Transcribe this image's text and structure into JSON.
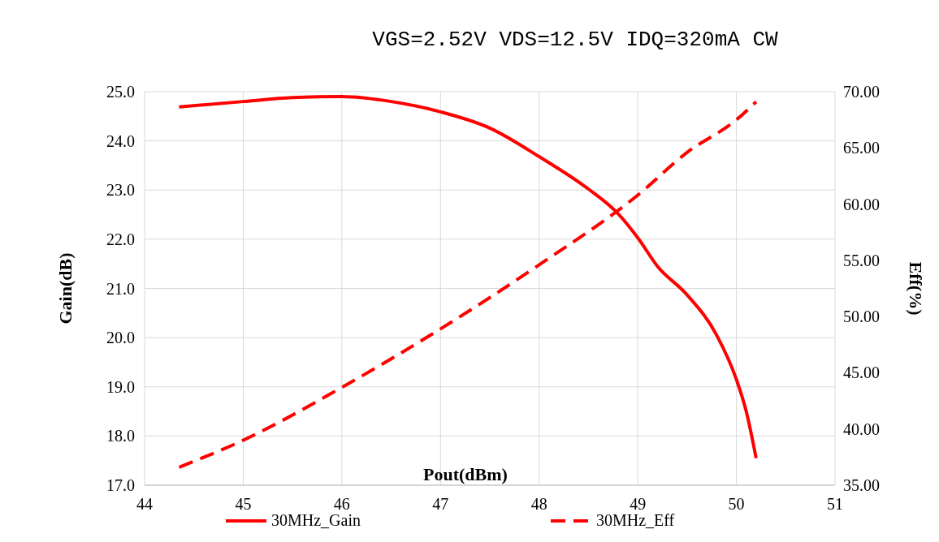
{
  "chart_data": {
    "type": "line",
    "title": "VGS=2.52V VDS=12.5V IDQ=320mA   CW",
    "xlabel": "Pout(dBm)",
    "ylabel": "Gain(dB)",
    "y2label": "Eff(%)",
    "xlim": [
      44,
      51
    ],
    "xticks": [
      44,
      45,
      46,
      47,
      48,
      49,
      50,
      51
    ],
    "ylim": [
      17,
      25
    ],
    "yticks": [
      {
        "value": 17,
        "label": "17.0"
      },
      {
        "value": 18,
        "label": "18.0"
      },
      {
        "value": 19,
        "label": "19.0"
      },
      {
        "value": 20,
        "label": "20.0"
      },
      {
        "value": 21,
        "label": "21.0"
      },
      {
        "value": 22,
        "label": "22.0"
      },
      {
        "value": 23,
        "label": "23.0"
      },
      {
        "value": 24,
        "label": "24.0"
      },
      {
        "value": 25,
        "label": "25.0"
      }
    ],
    "y2lim": [
      35,
      70
    ],
    "y2ticks": [
      {
        "value": 35,
        "label": "35.00"
      },
      {
        "value": 40,
        "label": "40.00"
      },
      {
        "value": 45,
        "label": "45.00"
      },
      {
        "value": 50,
        "label": "50.00"
      },
      {
        "value": 55,
        "label": "55.00"
      },
      {
        "value": 60,
        "label": "60.00"
      },
      {
        "value": 65,
        "label": "65.00"
      },
      {
        "value": 70,
        "label": "70.00"
      }
    ],
    "grid": true,
    "legend": "bottom",
    "marker": "none",
    "series": [
      {
        "name": "30MHz_Gain",
        "color": "#ff0000",
        "line_style": "solid",
        "x": [
          44.35,
          45,
          45.5,
          46,
          46.5,
          47,
          47.5,
          48,
          48.5,
          48.8,
          49,
          49.2,
          49.5,
          49.8,
          50,
          50.1,
          50.2
        ],
        "values": [
          24.69,
          24.8,
          24.88,
          24.9,
          24.8,
          24.59,
          24.26,
          23.68,
          23.02,
          22.52,
          22.03,
          21.45,
          20.87,
          20.05,
          19.15,
          18.5,
          17.55
        ]
      },
      {
        "name": "30MHz_Eff",
        "color": "#ff0000",
        "line_style": "dashed",
        "axis": "y2",
        "x": [
          44.35,
          45,
          46,
          47,
          48,
          49,
          49.5,
          50,
          50.2
        ],
        "values": [
          36.6,
          39,
          43.7,
          48.9,
          54.6,
          60.8,
          64.6,
          67.5,
          69.1
        ]
      }
    ]
  }
}
